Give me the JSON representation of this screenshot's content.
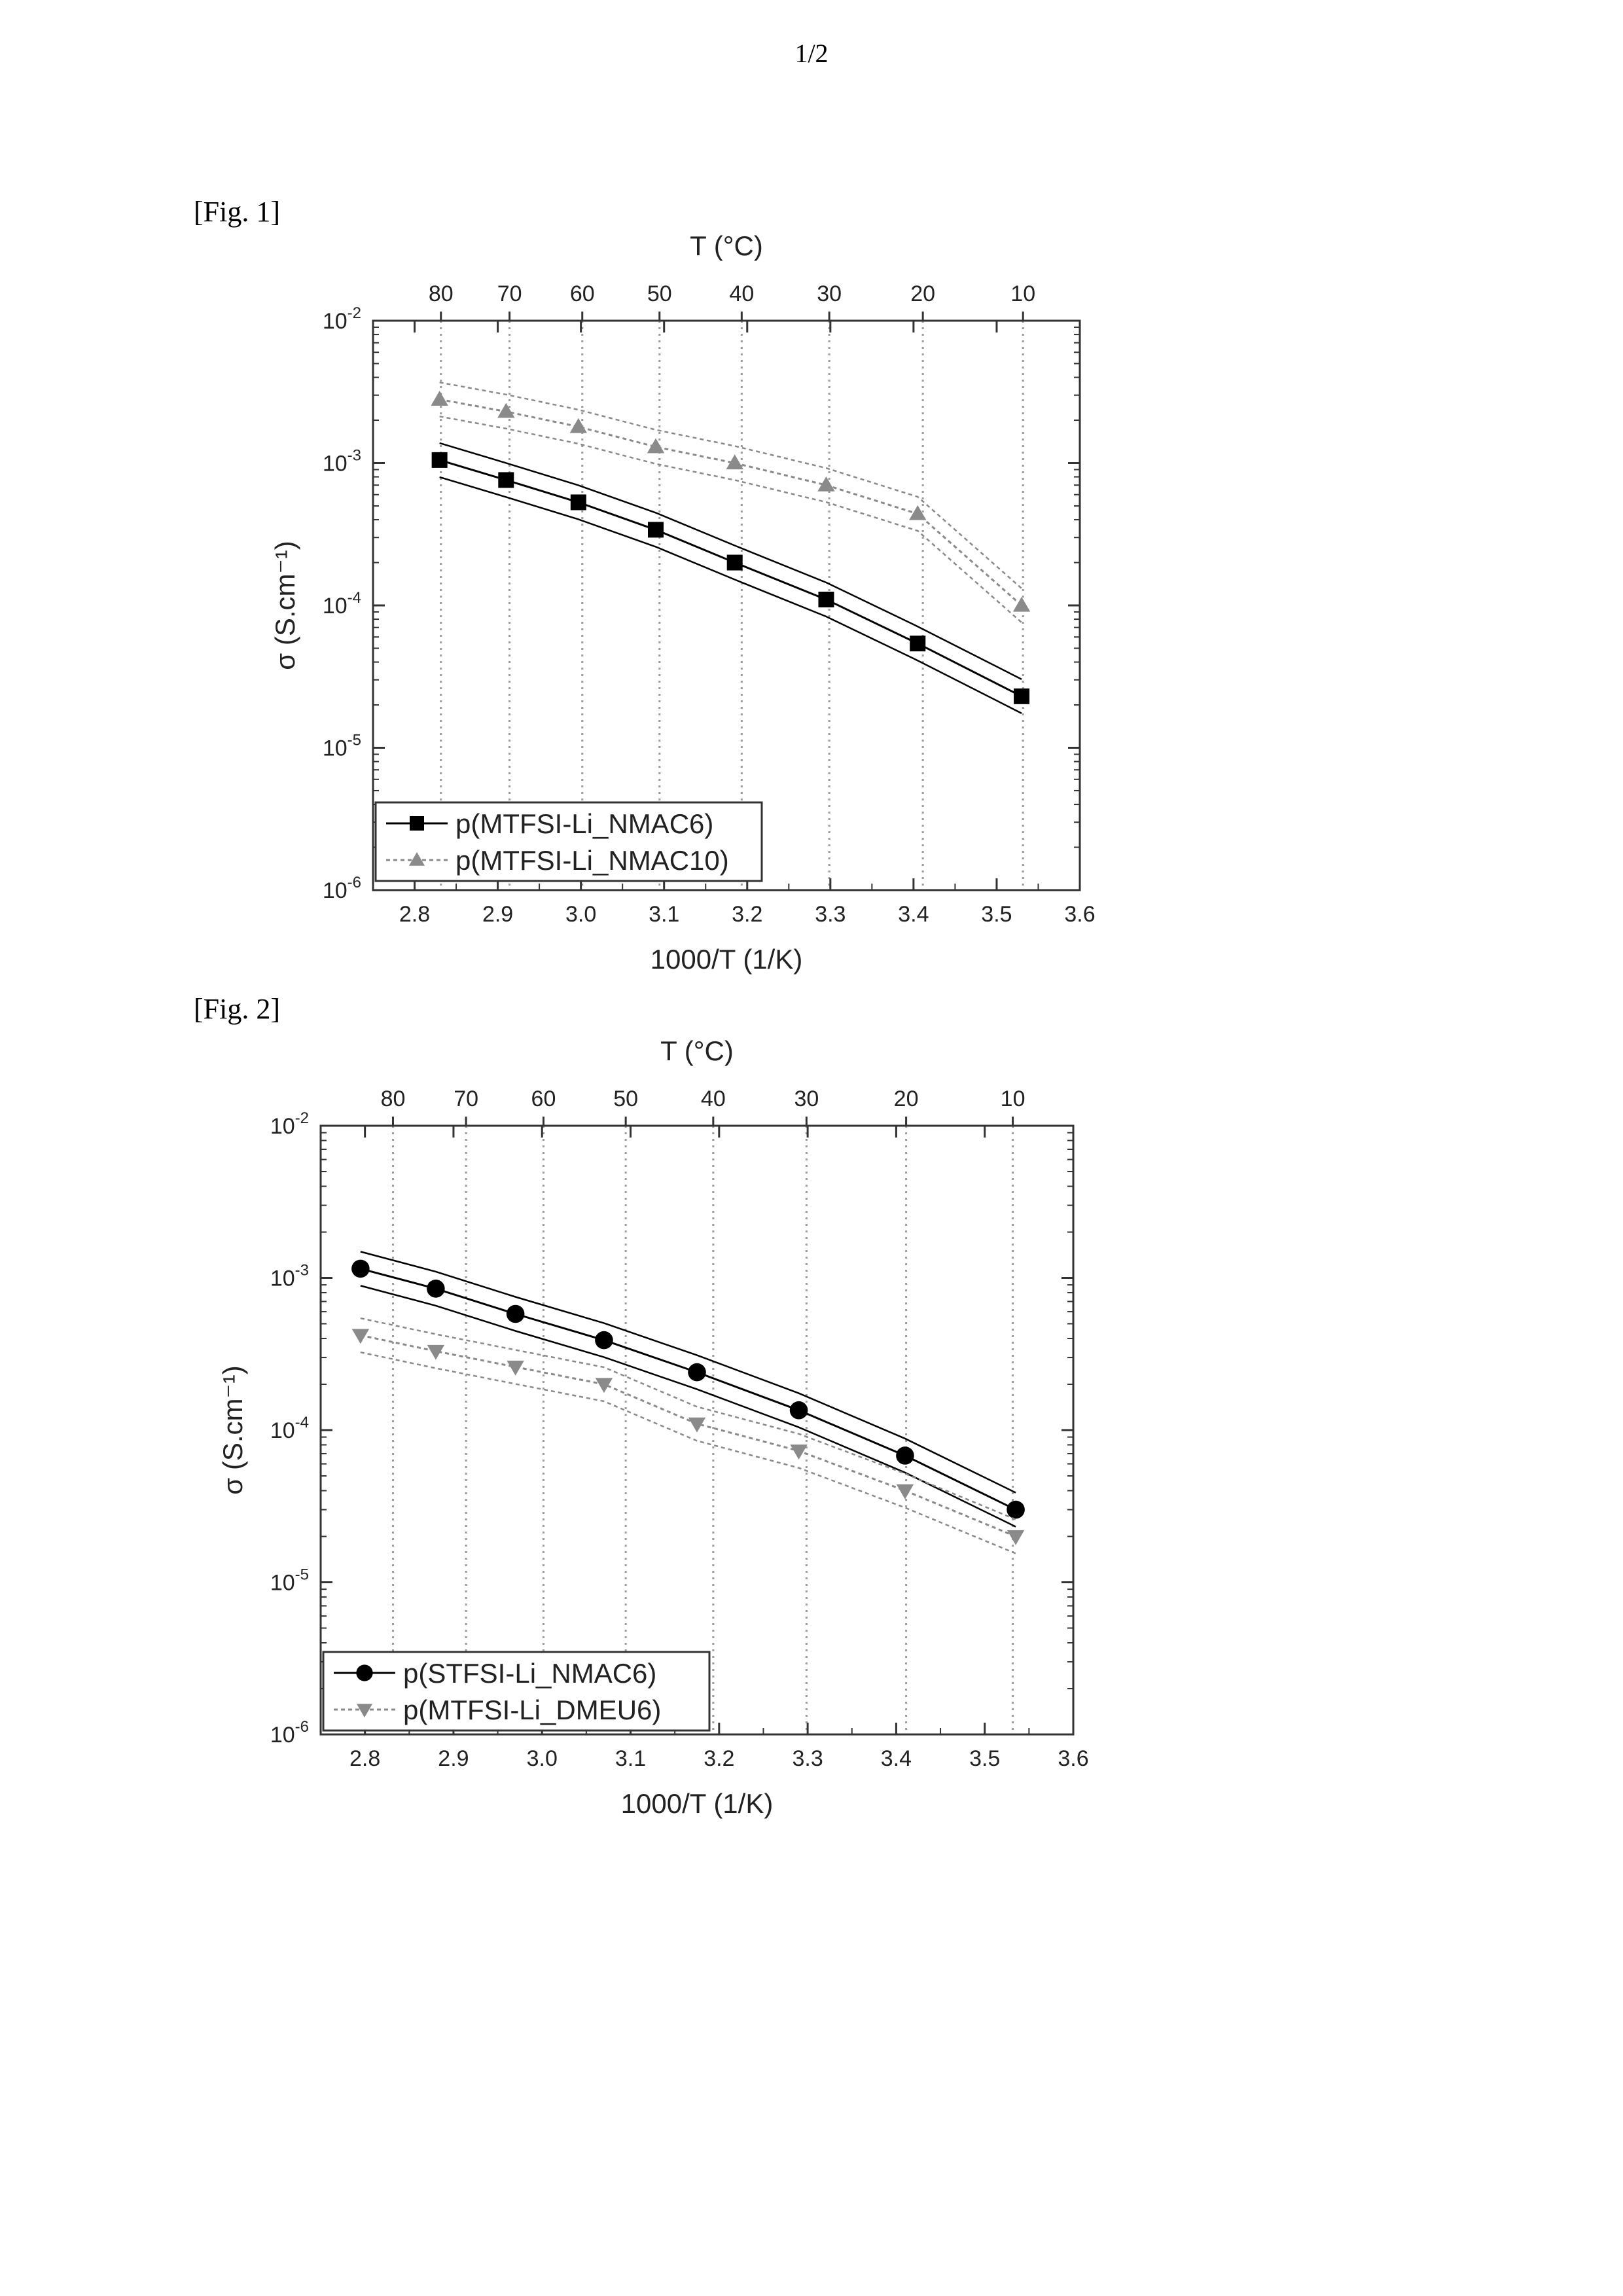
{
  "page": {
    "number": "1/2"
  },
  "figures": [
    {
      "label": "[Fig. 1]"
    },
    {
      "label": "[Fig. 2]"
    }
  ],
  "chart_data": [
    {
      "type": "line",
      "xlabel": "1000/T (1/K)",
      "ylabel": "σ (S.cm⁻¹)",
      "top_axis_label": "T (°C)",
      "xlim": [
        2.75,
        3.6
      ],
      "ylim": [
        1e-06,
        0.01
      ],
      "yscale": "log",
      "grid": "vertical dotted lines at top-axis temperatures",
      "legend_position": "bottom-left",
      "x_ticks": [
        "2.8",
        "2.9",
        "3.0",
        "3.1",
        "3.2",
        "3.3",
        "3.4",
        "3.5",
        "3.6"
      ],
      "y_ticks": [
        {
          "base": "10",
          "exp": "-2",
          "value": 0.01
        },
        {
          "base": "10",
          "exp": "-3",
          "value": 0.001
        },
        {
          "base": "10",
          "exp": "-4",
          "value": 0.0001
        },
        {
          "base": "10",
          "exp": "-5",
          "value": 1e-05
        },
        {
          "base": "10",
          "exp": "-6",
          "value": 1e-06
        }
      ],
      "top_ticks": [
        "80",
        "70",
        "60",
        "50",
        "40",
        "30",
        "20",
        "10"
      ],
      "series": [
        {
          "name": "p(MTFSI-Li_NMAC6)",
          "marker": "square",
          "color": "#000000",
          "x": [
            2.83,
            2.91,
            2.997,
            3.09,
            3.185,
            3.295,
            3.405,
            3.53
          ],
          "y": [
            0.00105,
            0.00076,
            0.00053,
            0.00034,
            0.0002,
            0.00011,
            5.4e-05,
            2.3e-05
          ]
        },
        {
          "name": "p(MTFSI-Li_NMAC10)",
          "marker": "triangle-up",
          "color": "#8a8a8a",
          "x": [
            2.83,
            2.91,
            2.997,
            3.09,
            3.185,
            3.295,
            3.405,
            3.53
          ],
          "y": [
            0.0028,
            0.0023,
            0.0018,
            0.0013,
            0.001,
            0.0007,
            0.00044,
            0.0001
          ]
        }
      ]
    },
    {
      "type": "line",
      "xlabel": "1000/T (1/K)",
      "ylabel": "σ (S.cm⁻¹)",
      "top_axis_label": "T (°C)",
      "xlim": [
        2.75,
        3.6
      ],
      "ylim": [
        1e-06,
        0.01
      ],
      "yscale": "log",
      "grid": "vertical dotted lines at top-axis temperatures",
      "legend_position": "bottom-left",
      "x_ticks": [
        "2.8",
        "2.9",
        "3.0",
        "3.1",
        "3.2",
        "3.3",
        "3.4",
        "3.5",
        "3.6"
      ],
      "y_ticks": [
        {
          "base": "10",
          "exp": "-2",
          "value": 0.01
        },
        {
          "base": "10",
          "exp": "-3",
          "value": 0.001
        },
        {
          "base": "10",
          "exp": "-4",
          "value": 0.0001
        },
        {
          "base": "10",
          "exp": "-5",
          "value": 1e-05
        },
        {
          "base": "10",
          "exp": "-6",
          "value": 1e-06
        }
      ],
      "top_ticks": [
        "80",
        "70",
        "60",
        "50",
        "40",
        "30",
        "20",
        "10"
      ],
      "series": [
        {
          "name": "p(STFSI-Li_NMAC6)",
          "marker": "circle",
          "color": "#000000",
          "x": [
            2.795,
            2.88,
            2.97,
            3.07,
            3.175,
            3.29,
            3.41,
            3.535
          ],
          "y": [
            0.00115,
            0.00085,
            0.00058,
            0.00039,
            0.00024,
            0.000135,
            6.8e-05,
            3e-05
          ]
        },
        {
          "name": "p(MTFSI-Li_DMEU6)",
          "marker": "triangle-down",
          "color": "#8a8a8a",
          "x": [
            2.795,
            2.88,
            2.97,
            3.07,
            3.175,
            3.29,
            3.41,
            3.535
          ],
          "y": [
            0.00042,
            0.00033,
            0.00026,
            0.0002,
            0.00011,
            7.3e-05,
            4e-05,
            2e-05
          ]
        }
      ]
    }
  ]
}
